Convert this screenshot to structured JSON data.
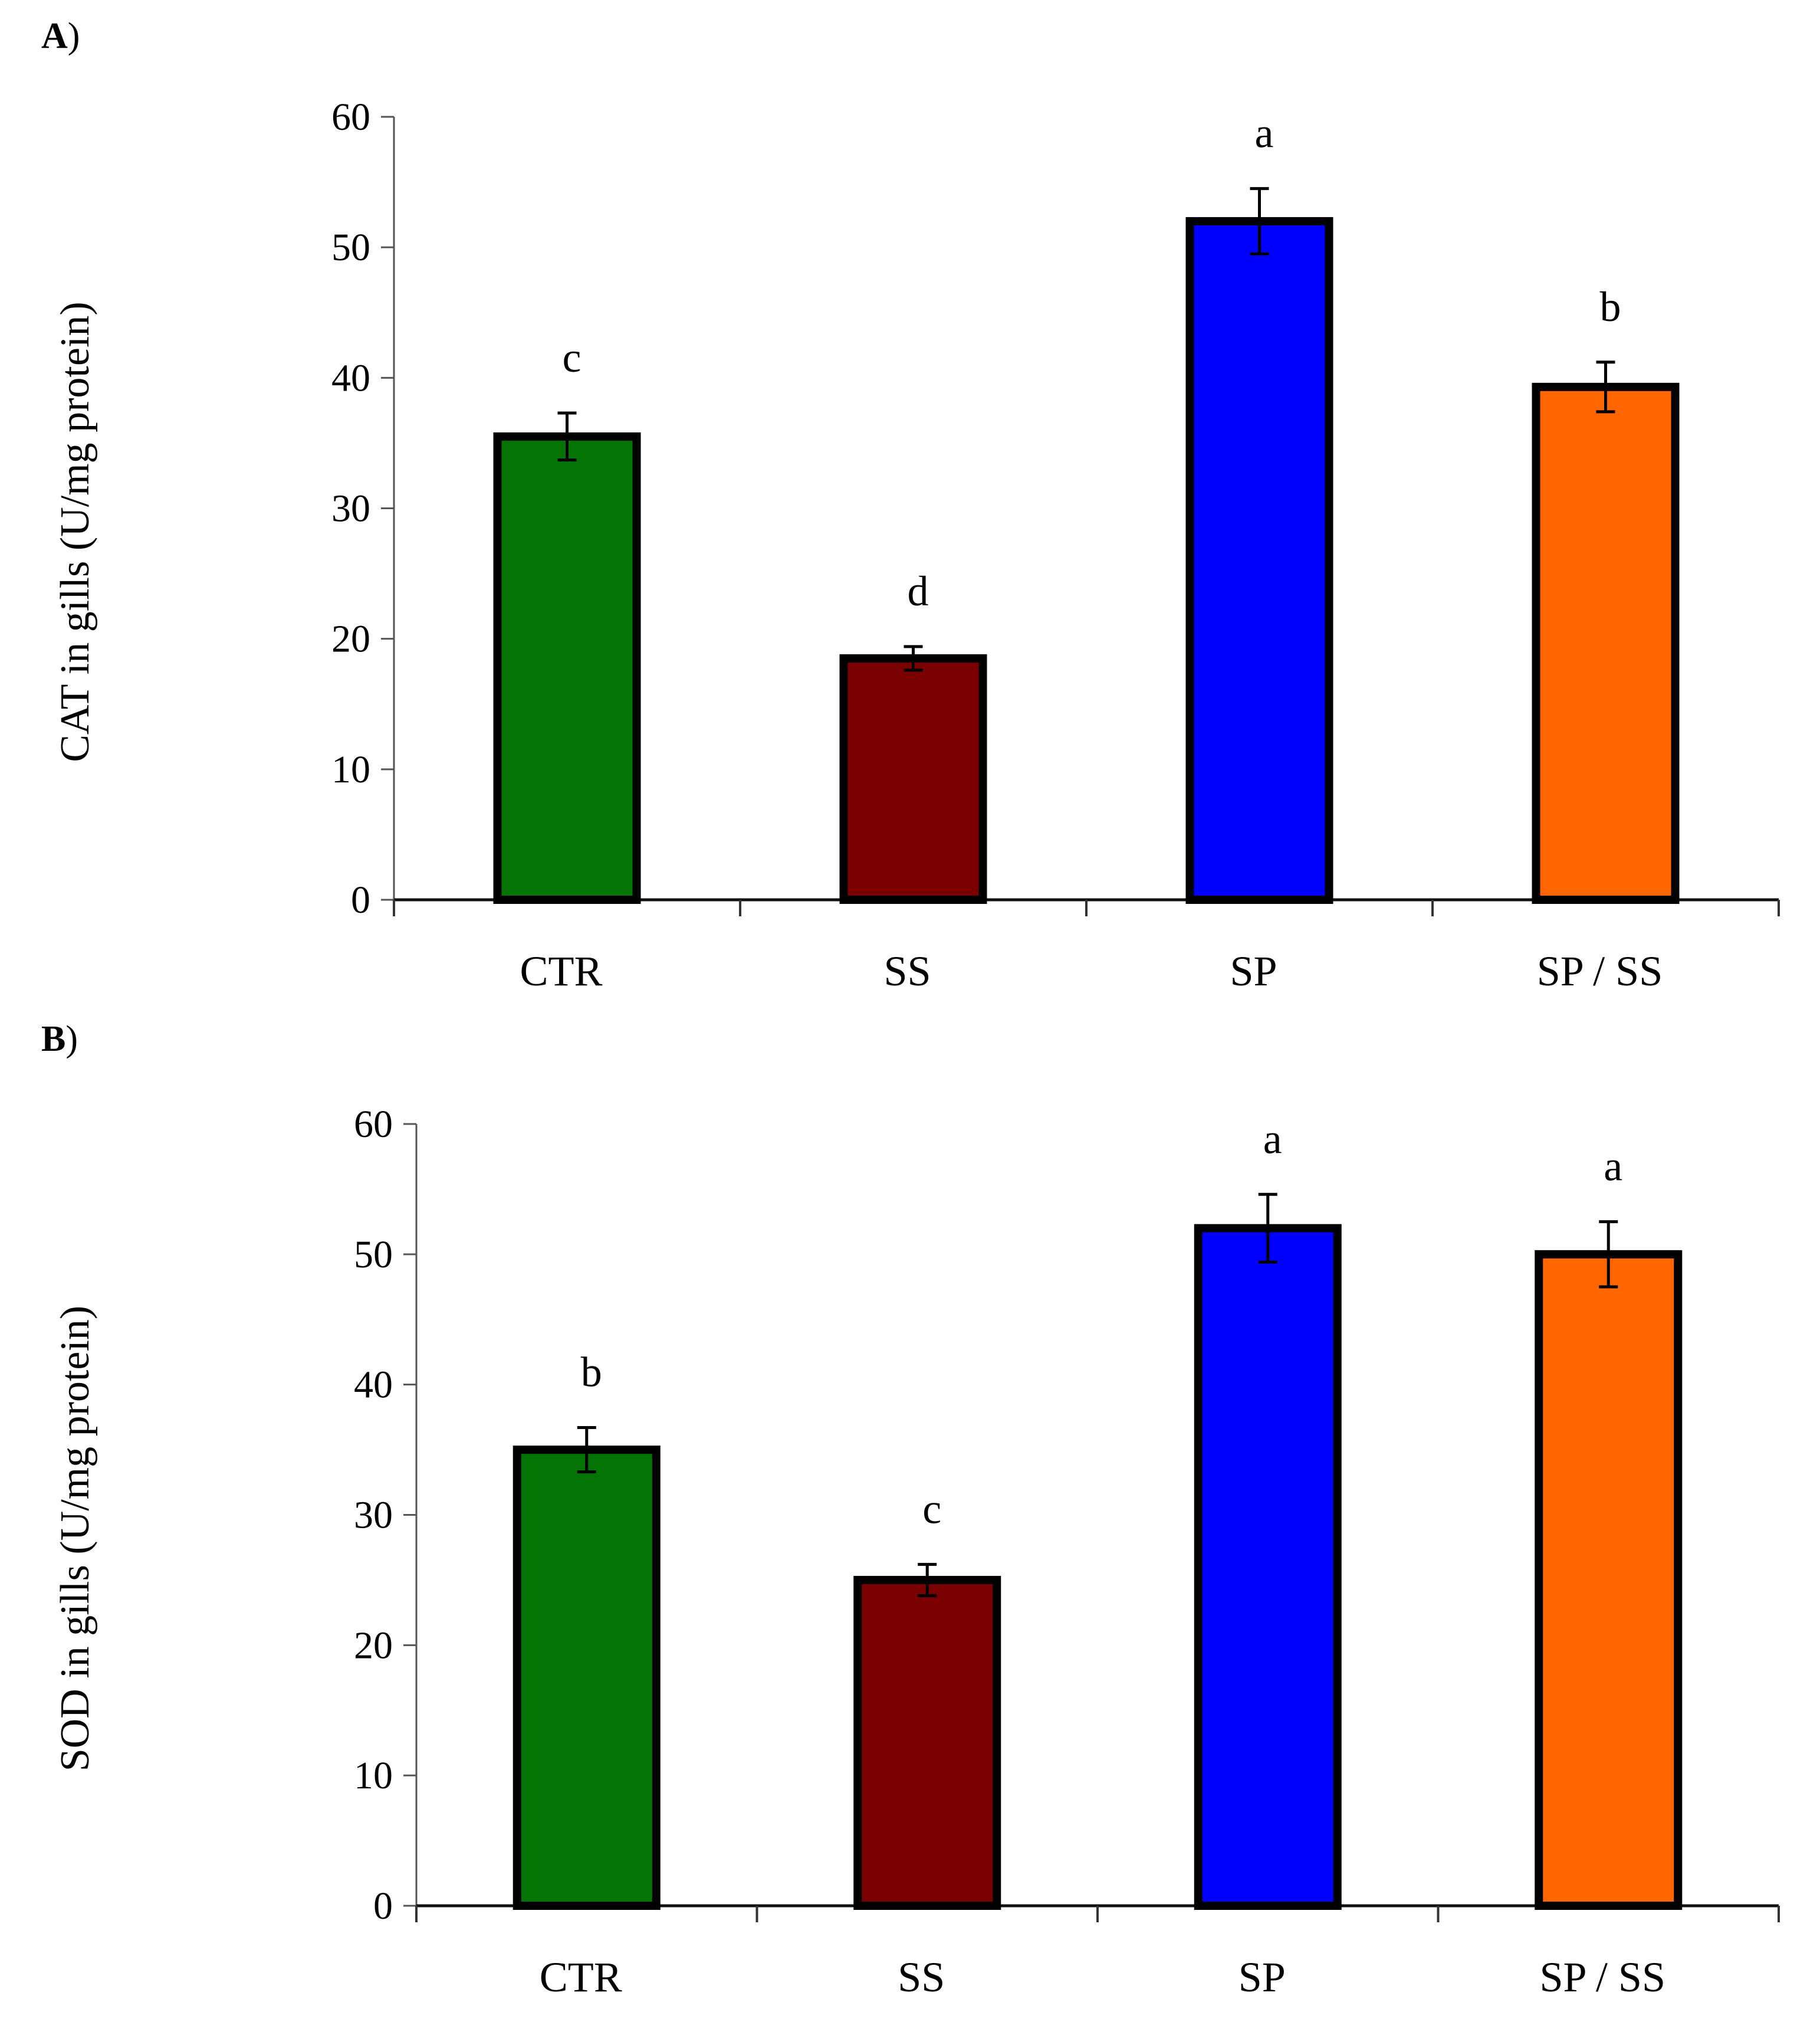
{
  "chart_data": [
    {
      "panel_label": "A",
      "type": "bar",
      "categories": [
        "CTR",
        "SS",
        "SP",
        "SP / SS"
      ],
      "values": [
        35.5,
        18.5,
        52,
        39.3
      ],
      "errors": [
        1.8,
        0.9,
        2.5,
        1.9
      ],
      "significance": [
        "c",
        "d",
        "a",
        "b"
      ],
      "colors": [
        "#047404",
        "#7a0000",
        "#0000ff",
        "#ff6600"
      ],
      "ylabel": "CAT in gills (U/mg protein)",
      "ylim": [
        0,
        60
      ],
      "yticks": [
        0,
        10,
        20,
        30,
        40,
        50,
        60
      ]
    },
    {
      "panel_label": "B",
      "type": "bar",
      "categories": [
        "CTR",
        "SS",
        "SP",
        "SP / SS"
      ],
      "values": [
        35,
        25,
        52,
        50
      ],
      "errors": [
        1.7,
        1.2,
        2.6,
        2.5
      ],
      "significance": [
        "b",
        "c",
        "a",
        "a"
      ],
      "colors": [
        "#047404",
        "#7a0000",
        "#0000ff",
        "#ff6600"
      ],
      "ylabel": "SOD in gills (U/mg protein)",
      "ylim": [
        0,
        60
      ],
      "yticks": [
        0,
        10,
        20,
        30,
        40,
        50,
        60
      ]
    }
  ]
}
